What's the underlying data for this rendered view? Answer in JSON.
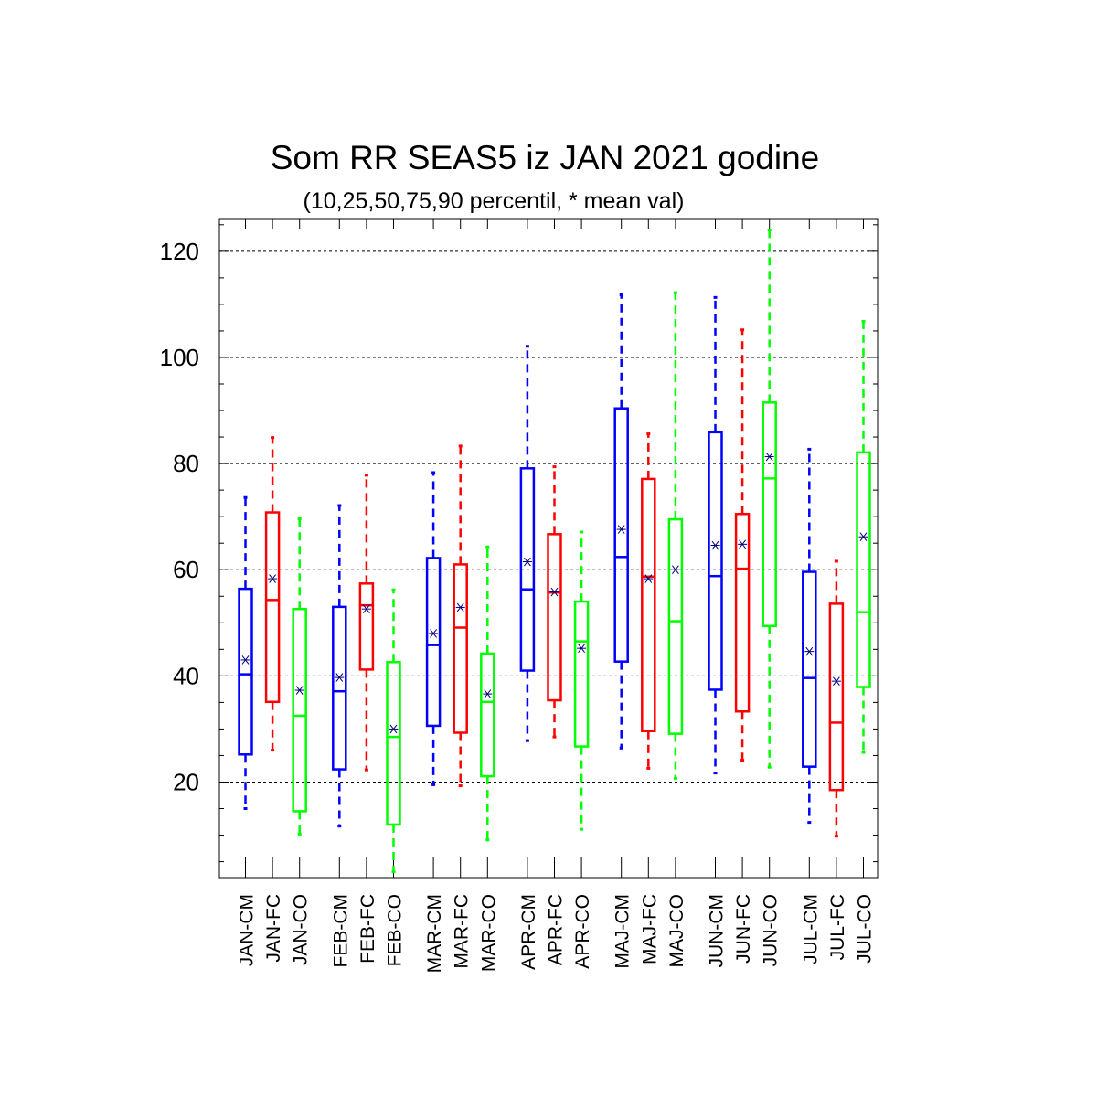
{
  "chart_data": {
    "type": "boxplot",
    "title": "Som RR SEAS5 iz JAN 2021 godine",
    "subtitle": "(10,25,50,75,90 percentil, * mean val)",
    "xlabel": "",
    "ylabel": "",
    "ylim": [
      2,
      126
    ],
    "yticks": [
      20,
      40,
      60,
      80,
      100,
      120
    ],
    "grid": "horizontal-dashed",
    "colors": {
      "CM": "#0000ff",
      "FC": "#ff0000",
      "CO": "#00ff00",
      "mean_marker": "#000080"
    },
    "categories": [
      "JAN-CM",
      "JAN-FC",
      "JAN-CO",
      "FEB-CM",
      "FEB-FC",
      "FEB-CO",
      "MAR-CM",
      "MAR-FC",
      "MAR-CO",
      "APR-CM",
      "APR-FC",
      "APR-CO",
      "MAJ-CM",
      "MAJ-FC",
      "MAJ-CO",
      "JUN-CM",
      "JUN-FC",
      "JUN-CO",
      "JUL-CM",
      "JUL-FC",
      "JUL-CO"
    ],
    "boxes": [
      {
        "label": "JAN-CM",
        "group": "CM",
        "p10": 15.0,
        "p25": 25.2,
        "p50": 40.3,
        "p75": 56.4,
        "p90": 73.6,
        "mean": 43.0
      },
      {
        "label": "JAN-FC",
        "group": "FC",
        "p10": 26.0,
        "p25": 35.1,
        "p50": 54.3,
        "p75": 70.8,
        "p90": 84.9,
        "mean": 58.3
      },
      {
        "label": "JAN-CO",
        "group": "CO",
        "p10": 10.2,
        "p25": 14.5,
        "p50": 32.5,
        "p75": 52.6,
        "p90": 69.6,
        "mean": 37.3
      },
      {
        "label": "FEB-CM",
        "group": "CM",
        "p10": 11.7,
        "p25": 22.4,
        "p50": 37.1,
        "p75": 53.0,
        "p90": 72.1,
        "mean": 39.7
      },
      {
        "label": "FEB-FC",
        "group": "FC",
        "p10": 22.3,
        "p25": 41.2,
        "p50": 53.3,
        "p75": 57.4,
        "p90": 77.8,
        "mean": 52.6
      },
      {
        "label": "FEB-CO",
        "group": "CO",
        "p10": 3.1,
        "p25": 12.0,
        "p50": 28.5,
        "p75": 42.6,
        "p90": 56.2,
        "mean": 30.0
      },
      {
        "label": "MAR-CM",
        "group": "CM",
        "p10": 19.5,
        "p25": 30.6,
        "p50": 45.8,
        "p75": 62.2,
        "p90": 78.3,
        "mean": 48.0
      },
      {
        "label": "MAR-FC",
        "group": "FC",
        "p10": 19.3,
        "p25": 29.3,
        "p50": 49.1,
        "p75": 61.0,
        "p90": 83.3,
        "mean": 52.9
      },
      {
        "label": "MAR-CO",
        "group": "CO",
        "p10": 9.1,
        "p25": 21.1,
        "p50": 35.1,
        "p75": 44.2,
        "p90": 64.3,
        "mean": 36.6
      },
      {
        "label": "APR-CM",
        "group": "CM",
        "p10": 27.8,
        "p25": 41.0,
        "p50": 56.3,
        "p75": 79.1,
        "p90": 102.1,
        "mean": 61.5
      },
      {
        "label": "APR-FC",
        "group": "FC",
        "p10": 28.5,
        "p25": 35.4,
        "p50": 55.7,
        "p75": 66.7,
        "p90": 79.4,
        "mean": 55.8
      },
      {
        "label": "APR-CO",
        "group": "CO",
        "p10": 11.1,
        "p25": 26.7,
        "p50": 46.5,
        "p75": 54.0,
        "p90": 67.1,
        "mean": 45.2
      },
      {
        "label": "MAJ-CM",
        "group": "CM",
        "p10": 26.4,
        "p25": 42.7,
        "p50": 62.4,
        "p75": 90.4,
        "p90": 111.8,
        "mean": 67.6
      },
      {
        "label": "MAJ-FC",
        "group": "FC",
        "p10": 22.6,
        "p25": 29.6,
        "p50": 58.7,
        "p75": 77.1,
        "p90": 85.6,
        "mean": 58.3
      },
      {
        "label": "MAJ-CO",
        "group": "CO",
        "p10": 20.7,
        "p25": 29.1,
        "p50": 50.3,
        "p75": 69.5,
        "p90": 112.2,
        "mean": 60.0
      },
      {
        "label": "JUN-CM",
        "group": "CM",
        "p10": 21.7,
        "p25": 37.4,
        "p50": 58.8,
        "p75": 85.9,
        "p90": 111.3,
        "mean": 64.6
      },
      {
        "label": "JUN-FC",
        "group": "FC",
        "p10": 24.1,
        "p25": 33.3,
        "p50": 60.2,
        "p75": 70.5,
        "p90": 105.2,
        "mean": 64.8
      },
      {
        "label": "JUN-CO",
        "group": "CO",
        "p10": 22.8,
        "p25": 49.4,
        "p50": 77.2,
        "p75": 91.5,
        "p90": 124.0,
        "mean": 81.3
      },
      {
        "label": "JUL-CM",
        "group": "CM",
        "p10": 12.4,
        "p25": 22.9,
        "p50": 39.6,
        "p75": 59.6,
        "p90": 82.7,
        "mean": 44.6
      },
      {
        "label": "JUL-FC",
        "group": "FC",
        "p10": 9.8,
        "p25": 18.5,
        "p50": 31.2,
        "p75": 53.6,
        "p90": 61.6,
        "mean": 39.0
      },
      {
        "label": "JUL-CO",
        "group": "CO",
        "p10": 25.6,
        "p25": 37.9,
        "p50": 52.0,
        "p75": 82.1,
        "p90": 106.8,
        "mean": 66.2
      }
    ]
  }
}
